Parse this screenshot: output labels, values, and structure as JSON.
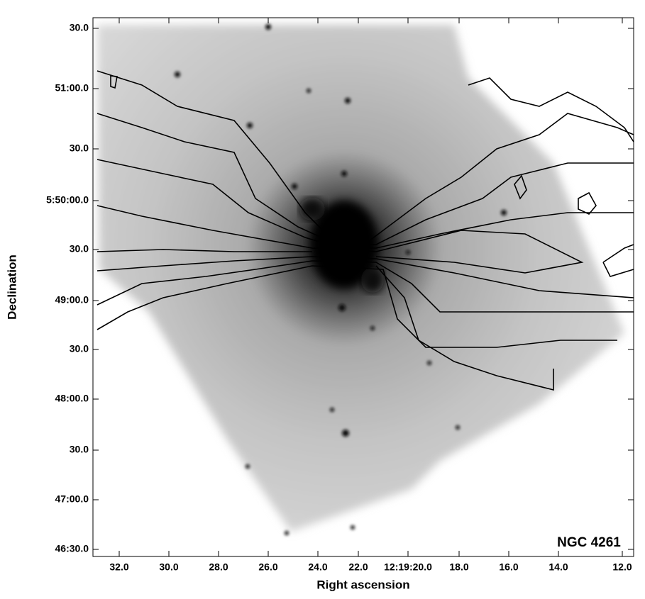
{
  "figure": {
    "label": "NGC 4261",
    "x_axis": {
      "title": "Right ascension",
      "ticks": [
        "32.0",
        "30.0",
        "28.0",
        "26.0",
        "24.0",
        "22.0",
        "12:19:20.0",
        "18.0",
        "16.0",
        "14.0",
        "12.0"
      ]
    },
    "y_axis": {
      "title": "Declination",
      "ticks": [
        "30.0",
        "51:00.0",
        "30.0",
        "5:50:00.0",
        "30.0",
        "49:00.0",
        "30.0",
        "48:00.0",
        "30.0",
        "47:00.0",
        "46:30.0"
      ]
    }
  }
}
